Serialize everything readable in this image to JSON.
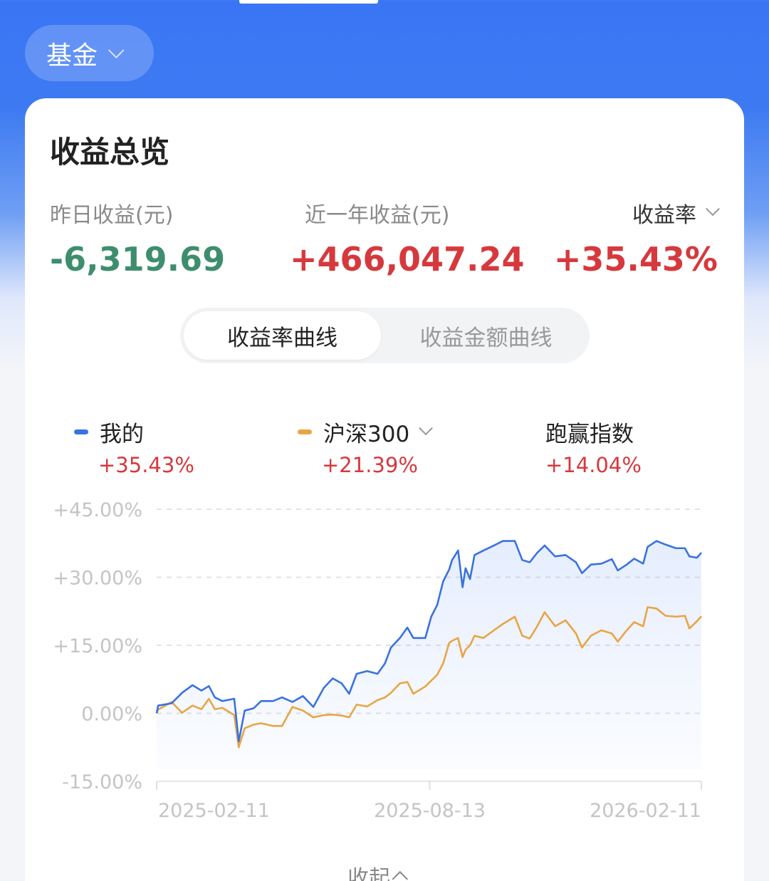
{
  "header": {
    "asset_type": "基金"
  },
  "card": {
    "title": "收益总览",
    "yesterday": {
      "label": "昨日收益(元)",
      "value": "-6,319.69"
    },
    "year": {
      "label": "近一年收益(元)",
      "value": "+466,047.24"
    },
    "rate": {
      "label": "收益率",
      "value": "+35.43%"
    }
  },
  "tabs": [
    {
      "label": "收益率曲线",
      "selected": true
    },
    {
      "label": "收益金额曲线",
      "selected": false
    }
  ],
  "legend": [
    {
      "name": "我的",
      "value": "+35.43%",
      "color": "#3a72e0"
    },
    {
      "name": "沪深300",
      "value": "+21.39%",
      "color": "#e8a545"
    },
    {
      "name": "跑赢指数",
      "value": "+14.04%"
    }
  ],
  "collapse_label": "收起",
  "colors": {
    "positive": "#d6393d",
    "negative": "#3e8e6e",
    "accent": "#3a76f4"
  },
  "chart_data": {
    "type": "line",
    "x_range": [
      "2025-02-11",
      "2026-02-11"
    ],
    "x_ticks": [
      "2025-02-11",
      "2025-08-13",
      "2026-02-11"
    ],
    "ylim": [
      -15,
      45
    ],
    "y_ticks": [
      45,
      30,
      15,
      0,
      -15
    ],
    "y_tick_labels": [
      "+45.00%",
      "+30.00%",
      "+15.00%",
      "0.00%",
      "-15.00%"
    ],
    "grid": true,
    "x": [
      "2025-02-11",
      "2025-02-12",
      "2025-02-21",
      "2025-02-28",
      "2025-03-07",
      "2025-03-13",
      "2025-03-18",
      "2025-03-22",
      "2025-03-27",
      "2025-04-04",
      "2025-04-07",
      "2025-04-11",
      "2025-04-17",
      "2025-04-22",
      "2025-04-30",
      "2025-05-06",
      "2025-05-13",
      "2025-05-20",
      "2025-05-27",
      "2025-06-03",
      "2025-06-09",
      "2025-06-15",
      "2025-06-20",
      "2025-06-25",
      "2025-07-02",
      "2025-07-09",
      "2025-07-14",
      "2025-07-18",
      "2025-07-24",
      "2025-07-29",
      "2025-08-02",
      "2025-08-10",
      "2025-08-14",
      "2025-08-18",
      "2025-08-22",
      "2025-08-26",
      "2025-08-28",
      "2025-09-01",
      "2025-09-04",
      "2025-09-06",
      "2025-09-09",
      "2025-09-12",
      "2025-09-18",
      "2025-09-25",
      "2025-10-01",
      "2025-10-09",
      "2025-10-14",
      "2025-10-19",
      "2025-10-24",
      "2025-10-29",
      "2025-11-05",
      "2025-11-12",
      "2025-11-19",
      "2025-11-23",
      "2025-11-29",
      "2025-12-06",
      "2025-12-13",
      "2025-12-17",
      "2025-12-23",
      "2025-12-28",
      "2026-01-03",
      "2026-01-06",
      "2026-01-12",
      "2026-01-18",
      "2026-01-25",
      "2026-01-31",
      "2026-02-03",
      "2026-02-08",
      "2026-02-11"
    ],
    "series": [
      {
        "name": "我的",
        "values": [
          0,
          1.7,
          2.2,
          4.5,
          6.2,
          5,
          6,
          3.5,
          2.7,
          3.2,
          -6.2,
          0.6,
          1.1,
          2.7,
          2.7,
          3.5,
          2.5,
          3.8,
          1.4,
          5.6,
          7.7,
          6.6,
          4.3,
          8.7,
          9.3,
          8.7,
          11,
          14.5,
          16.6,
          18.9,
          16.6,
          16.6,
          21.3,
          23.9,
          29.1,
          31.7,
          33.8,
          35.9,
          27.8,
          32,
          29.6,
          34.9,
          35.9,
          37,
          38,
          38,
          33.8,
          33.3,
          35.4,
          37,
          34.6,
          34.9,
          33.3,
          30.9,
          32.8,
          33,
          34,
          31.5,
          32.8,
          34.1,
          33,
          36.7,
          38,
          37.2,
          36.4,
          36.4,
          34.6,
          34.3,
          35.43
        ]
      },
      {
        "name": "沪深300",
        "values": [
          0,
          0.8,
          2.5,
          0.1,
          1.7,
          0.9,
          3.2,
          0.9,
          1.2,
          -0.4,
          -7.5,
          -3.3,
          -2.5,
          -2.2,
          -2.8,
          -2.8,
          1.4,
          0.6,
          -0.9,
          -0.4,
          -0.3,
          -0.5,
          -0.9,
          1.9,
          1.5,
          2.9,
          3.5,
          4.5,
          6.6,
          6.9,
          4.3,
          5.9,
          7.2,
          8.5,
          11,
          15.5,
          16,
          16.6,
          12.4,
          14,
          15,
          17.1,
          16.6,
          18.3,
          19.7,
          21.3,
          17.1,
          16.5,
          19.2,
          22.3,
          19.2,
          20.5,
          17.6,
          14.5,
          17.1,
          18.3,
          17.6,
          15.8,
          18.3,
          20.1,
          19.2,
          23.4,
          23.1,
          21.5,
          21.3,
          21.5,
          18.7,
          20.3,
          21.39
        ]
      }
    ]
  }
}
